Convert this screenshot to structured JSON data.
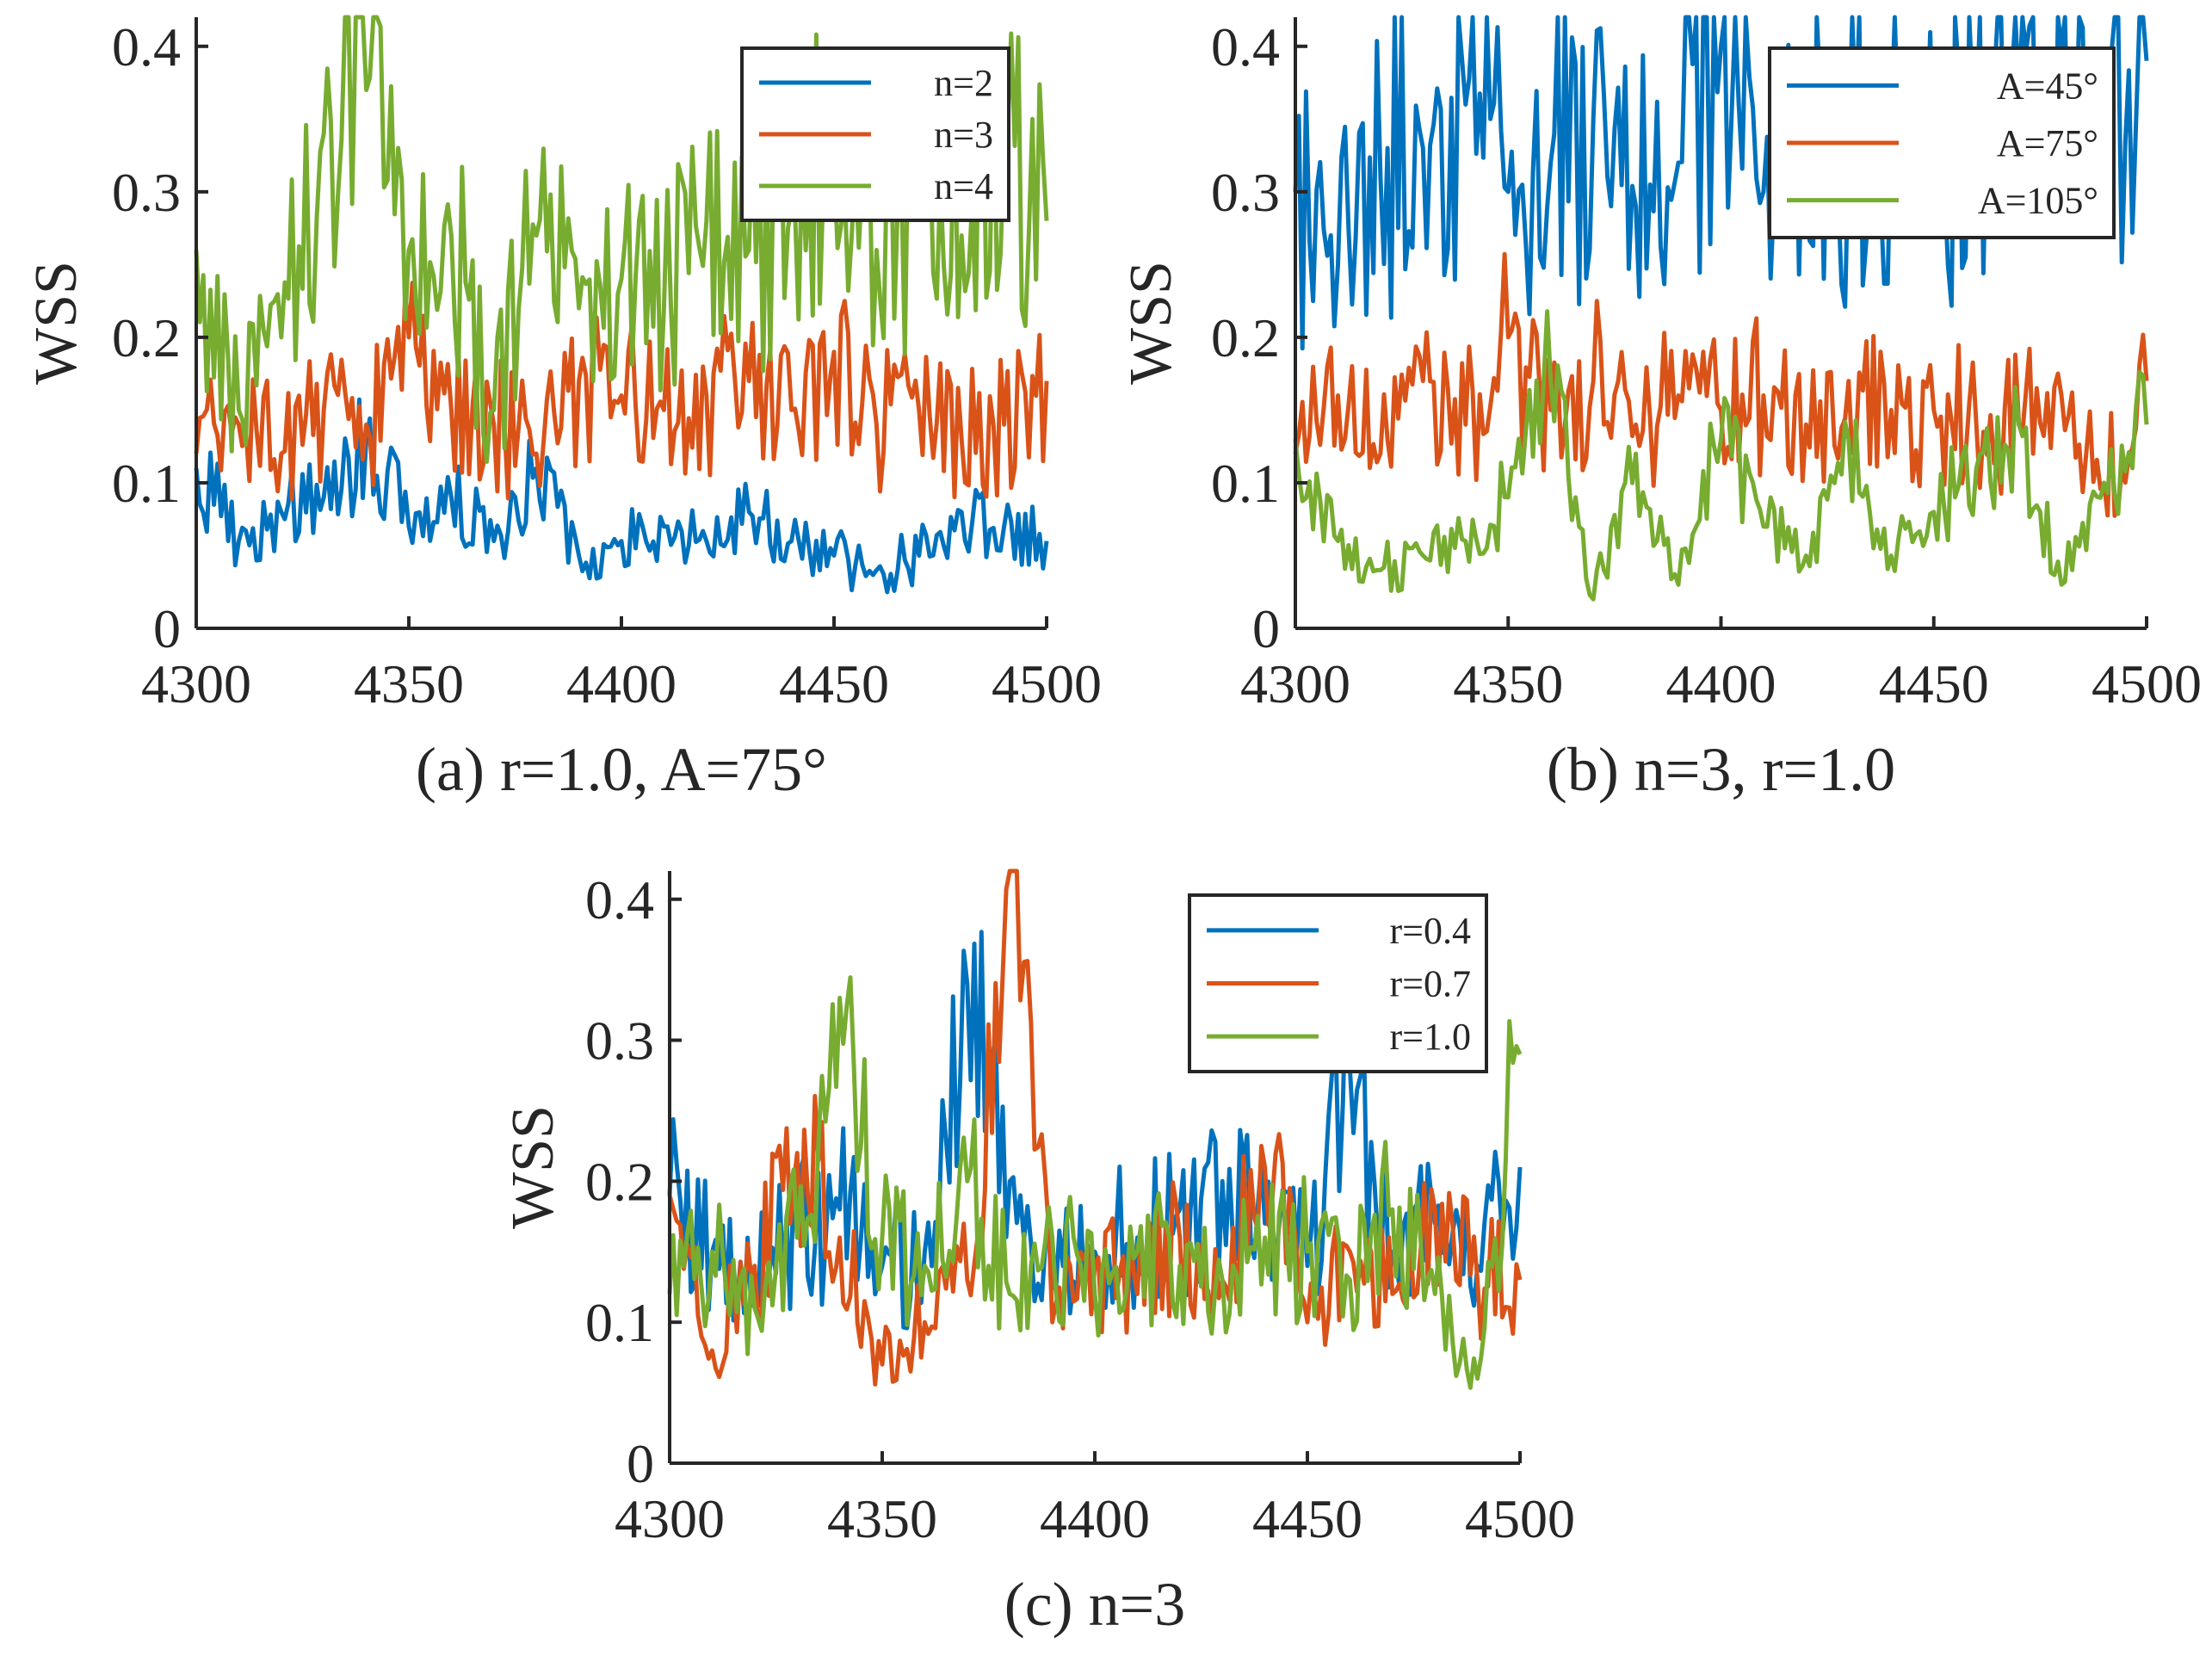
{
  "chart_data": [
    {
      "id": "a",
      "type": "line",
      "title": "",
      "caption": "(a) r=1.0, A=75°",
      "xlabel": "",
      "ylabel": "WSS",
      "xlim": [
        4300,
        4500
      ],
      "ylim": [
        0,
        0.42
      ],
      "xticks": [
        4300,
        4350,
        4400,
        4450,
        4500
      ],
      "xtick_labels": [
        "4300",
        "4350",
        "4400",
        "4450",
        "4500"
      ],
      "yticks": [
        0,
        0.1,
        0.2,
        0.3,
        0.4
      ],
      "ytick_labels": [
        "0",
        "0.1",
        "0.2",
        "0.3",
        "0.4"
      ],
      "legend_position": "top-right",
      "grid": false,
      "x": [
        4300,
        4310,
        4320,
        4330,
        4340,
        4350,
        4360,
        4370,
        4380,
        4390,
        4400,
        4410,
        4420,
        4430,
        4440,
        4450,
        4460,
        4470,
        4480,
        4490,
        4500
      ],
      "series": [
        {
          "name": "n=2",
          "color": "#0072BD",
          "values": [
            0.11,
            0.06,
            0.08,
            0.09,
            0.13,
            0.07,
            0.09,
            0.06,
            0.11,
            0.05,
            0.06,
            0.07,
            0.06,
            0.08,
            0.06,
            0.05,
            0.04,
            0.05,
            0.08,
            0.07,
            0.06
          ]
        },
        {
          "name": "n=3",
          "color": "#D95319",
          "values": [
            0.12,
            0.14,
            0.12,
            0.15,
            0.14,
            0.2,
            0.15,
            0.14,
            0.12,
            0.17,
            0.16,
            0.15,
            0.16,
            0.17,
            0.15,
            0.19,
            0.14,
            0.15,
            0.13,
            0.14,
            0.17
          ]
        },
        {
          "name": "n=4",
          "color": "#77AC30",
          "values": [
            0.26,
            0.15,
            0.2,
            0.34,
            0.37,
            0.26,
            0.27,
            0.15,
            0.27,
            0.22,
            0.24,
            0.22,
            0.28,
            0.26,
            0.29,
            0.32,
            0.26,
            0.3,
            0.27,
            0.33,
            0.28
          ]
        }
      ]
    },
    {
      "id": "b",
      "type": "line",
      "title": "",
      "caption": "(b) n=3, r=1.0",
      "xlabel": "",
      "ylabel": "WSS",
      "xlim": [
        4300,
        4500
      ],
      "ylim": [
        0,
        0.42
      ],
      "xticks": [
        4300,
        4350,
        4400,
        4450,
        4500
      ],
      "xtick_labels": [
        "4300",
        "4350",
        "4400",
        "4450",
        "4500"
      ],
      "yticks": [
        0,
        0.1,
        0.2,
        0.3,
        0.4
      ],
      "ytick_labels": [
        "0",
        "0.1",
        "0.2",
        "0.3",
        "0.4"
      ],
      "legend_position": "top-right",
      "grid": false,
      "x": [
        4300,
        4310,
        4320,
        4330,
        4340,
        4350,
        4360,
        4370,
        4380,
        4390,
        4400,
        4410,
        4420,
        4430,
        4440,
        4450,
        4460,
        4470,
        4480,
        4490,
        4500
      ],
      "series": [
        {
          "name": "A=45°",
          "color": "#0072BD",
          "values": [
            0.3,
            0.25,
            0.31,
            0.33,
            0.36,
            0.3,
            0.32,
            0.35,
            0.29,
            0.32,
            0.4,
            0.3,
            0.34,
            0.33,
            0.35,
            0.32,
            0.35,
            0.37,
            0.4,
            0.37,
            0.39
          ]
        },
        {
          "name": "A=75°",
          "color": "#D95319",
          "values": [
            0.12,
            0.16,
            0.12,
            0.17,
            0.14,
            0.2,
            0.15,
            0.17,
            0.14,
            0.16,
            0.15,
            0.16,
            0.14,
            0.17,
            0.15,
            0.15,
            0.14,
            0.14,
            0.16,
            0.1,
            0.17
          ]
        },
        {
          "name": "A=105°",
          "color": "#77AC30",
          "values": [
            0.13,
            0.06,
            0.04,
            0.05,
            0.06,
            0.09,
            0.17,
            0.02,
            0.12,
            0.03,
            0.13,
            0.07,
            0.05,
            0.13,
            0.05,
            0.08,
            0.11,
            0.14,
            0.03,
            0.1,
            0.14
          ]
        }
      ]
    },
    {
      "id": "c",
      "type": "line",
      "title": "",
      "caption": "(c) n=3",
      "xlabel": "",
      "ylabel": "WSS",
      "xlim": [
        4300,
        4500
      ],
      "ylim": [
        0,
        0.42
      ],
      "xticks": [
        4300,
        4350,
        4400,
        4450,
        4500
      ],
      "xtick_labels": [
        "4300",
        "4350",
        "4400",
        "4450",
        "4500"
      ],
      "yticks": [
        0,
        0.1,
        0.2,
        0.3,
        0.4
      ],
      "ytick_labels": [
        "0",
        "0.1",
        "0.2",
        "0.3",
        "0.4"
      ],
      "legend_position": "top-right",
      "grid": false,
      "x": [
        4300,
        4310,
        4320,
        4330,
        4340,
        4350,
        4360,
        4370,
        4380,
        4390,
        4400,
        4410,
        4420,
        4430,
        4440,
        4450,
        4460,
        4470,
        4480,
        4490,
        4500
      ],
      "series": [
        {
          "name": "r=0.4",
          "color": "#0072BD",
          "values": [
            0.19,
            0.15,
            0.13,
            0.16,
            0.18,
            0.14,
            0.15,
            0.34,
            0.2,
            0.13,
            0.15,
            0.16,
            0.18,
            0.2,
            0.17,
            0.14,
            0.28,
            0.15,
            0.17,
            0.14,
            0.21
          ]
        },
        {
          "name": "r=0.7",
          "color": "#D95319",
          "values": [
            0.19,
            0.08,
            0.14,
            0.22,
            0.16,
            0.07,
            0.1,
            0.13,
            0.42,
            0.1,
            0.14,
            0.12,
            0.16,
            0.13,
            0.21,
            0.1,
            0.15,
            0.12,
            0.18,
            0.13,
            0.13
          ]
        },
        {
          "name": "r=1.0",
          "color": "#77AC30",
          "values": [
            0.12,
            0.15,
            0.11,
            0.16,
            0.33,
            0.16,
            0.14,
            0.2,
            0.12,
            0.16,
            0.12,
            0.15,
            0.14,
            0.13,
            0.16,
            0.15,
            0.13,
            0.18,
            0.12,
            0.06,
            0.29
          ]
        }
      ]
    }
  ]
}
